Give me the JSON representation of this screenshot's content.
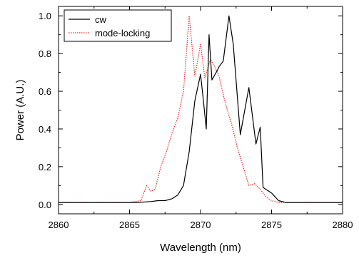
{
  "chart_data": {
    "type": "line",
    "title": "",
    "xlabel": "Wavelength (nm)",
    "ylabel": "Power (A.U.)",
    "xlim": [
      2860,
      2880
    ],
    "ylim": [
      -0.05,
      1.05
    ],
    "xticks": [
      2860,
      2865,
      2870,
      2875,
      2880
    ],
    "yticks": [
      0.0,
      0.2,
      0.4,
      0.6,
      0.8,
      1.0
    ],
    "xtick_labels": [
      "2860",
      "2865",
      "2870",
      "2875",
      "2880"
    ],
    "ytick_labels": [
      "0.0",
      "0.2",
      "0.4",
      "0.6",
      "0.8",
      "1.0"
    ],
    "grid": false,
    "legend_position": "top-left",
    "series": [
      {
        "name": "cw",
        "color": "#000000",
        "style": "solid",
        "x": [
          2860,
          2862,
          2864,
          2865.5,
          2866.5,
          2867,
          2867.5,
          2868,
          2868.4,
          2868.8,
          2869.2,
          2869.6,
          2870.0,
          2870.2,
          2870.4,
          2870.6,
          2870.8,
          2871.1,
          2871.3,
          2871.6,
          2871.8,
          2872.0,
          2872.3,
          2872.8,
          2873.4,
          2873.9,
          2874.2,
          2874.4,
          2874.6,
          2875.0,
          2875.5,
          2876,
          2877,
          2878,
          2880
        ],
        "y": [
          0.01,
          0.01,
          0.01,
          0.01,
          0.015,
          0.02,
          0.02,
          0.03,
          0.05,
          0.1,
          0.28,
          0.55,
          0.69,
          0.55,
          0.4,
          0.9,
          0.66,
          0.7,
          0.73,
          0.76,
          0.88,
          1.0,
          0.85,
          0.37,
          0.62,
          0.32,
          0.41,
          0.09,
          0.08,
          0.06,
          0.02,
          0.01,
          0.01,
          0.01,
          0.01
        ]
      },
      {
        "name": "mode-locking",
        "color": "#e8271e",
        "style": "dotted",
        "x": [
          2860,
          2863,
          2865,
          2865.8,
          2866.2,
          2866.5,
          2866.8,
          2867.2,
          2867.6,
          2868.0,
          2868.4,
          2868.8,
          2869.2,
          2869.6,
          2870.0,
          2870.3,
          2870.7,
          2871.0,
          2871.3,
          2871.7,
          2872.2,
          2872.6,
          2873.0,
          2873.4,
          2873.8,
          2874.2,
          2874.6,
          2875.0,
          2875.5,
          2876,
          2878,
          2880
        ],
        "y": [
          0.01,
          0.01,
          0.01,
          0.02,
          0.1,
          0.07,
          0.08,
          0.2,
          0.28,
          0.38,
          0.46,
          0.6,
          1.0,
          0.68,
          0.85,
          0.67,
          0.77,
          0.73,
          0.68,
          0.55,
          0.42,
          0.3,
          0.2,
          0.1,
          0.11,
          0.08,
          0.04,
          0.02,
          0.01,
          0.01,
          0.01,
          0.01
        ]
      }
    ]
  }
}
